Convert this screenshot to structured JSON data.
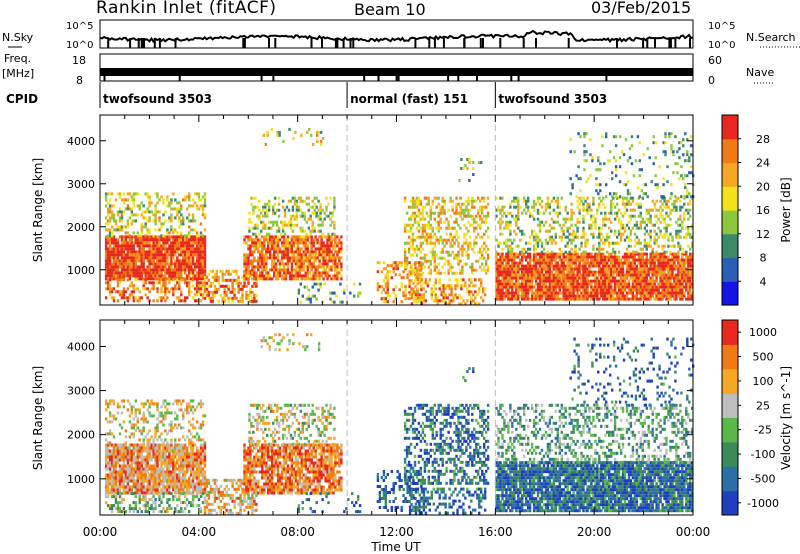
{
  "header": {
    "title": "Rankin Inlet (fitACF)",
    "beam": "Beam 10",
    "date": "03/Feb/2015"
  },
  "strips": {
    "noise_left": "N.Sky",
    "noise_right": "N.Search",
    "noise_ticks": [
      "10^5",
      "10^0"
    ],
    "freq_left_top": "Freq.",
    "freq_left_unit": "[MHz]",
    "freq_ticks": [
      "18",
      "8"
    ],
    "nave_ticks": [
      "60",
      "0"
    ],
    "nave_right": "Nave",
    "cpid_label": "CPID",
    "cpid_segments": [
      {
        "label": "twofsound 3503",
        "start_h": 0.0,
        "end_h": 10.0
      },
      {
        "label": "normal (fast) 151",
        "start_h": 10.0,
        "end_h": 16.0
      },
      {
        "label": "twofsound 3503",
        "start_h": 16.0,
        "end_h": 24.0
      }
    ]
  },
  "chart_data": [
    {
      "type": "heatmap",
      "title": "",
      "xlabel": "",
      "ylabel": "Slant Range [km]",
      "xlim": [
        0,
        24
      ],
      "ylim": [
        180,
        4600
      ],
      "yticks": [
        1000,
        2000,
        3000,
        4000
      ],
      "colorbar": {
        "label": "Power [dB]",
        "ticks": [
          "4",
          "8",
          "12",
          "16",
          "20",
          "24",
          "28"
        ],
        "colors": [
          "#1414e6",
          "#2a5fb5",
          "#3a8a6a",
          "#8dc63f",
          "#f2e21a",
          "#f5a623",
          "#f07a14",
          "#e8281e"
        ]
      },
      "scatter_regions": [
        {
          "t": [
            0.2,
            4.2
          ],
          "r": [
            800,
            1800
          ],
          "level": 0.93,
          "density": 0.92
        },
        {
          "t": [
            0.2,
            4.2
          ],
          "r": [
            1800,
            2800
          ],
          "level": 0.55,
          "density": 0.35
        },
        {
          "t": [
            0.2,
            4.2
          ],
          "r": [
            250,
            800
          ],
          "level": 0.78,
          "density": 0.45
        },
        {
          "t": [
            4.2,
            6.3
          ],
          "r": [
            250,
            1000
          ],
          "level": 0.75,
          "density": 0.55
        },
        {
          "t": [
            5.8,
            9.8
          ],
          "r": [
            800,
            1800
          ],
          "level": 0.82,
          "density": 0.8
        },
        {
          "t": [
            6.0,
            9.5
          ],
          "r": [
            1800,
            2700
          ],
          "level": 0.5,
          "density": 0.35
        },
        {
          "t": [
            6.5,
            9.0
          ],
          "r": [
            3900,
            4300
          ],
          "level": 0.55,
          "density": 0.2
        },
        {
          "t": [
            8.0,
            10.5
          ],
          "r": [
            250,
            700
          ],
          "level": 0.35,
          "density": 0.15
        },
        {
          "t": [
            11.2,
            13.0
          ],
          "r": [
            250,
            1200
          ],
          "level": 0.72,
          "density": 0.35
        },
        {
          "t": [
            12.3,
            15.7
          ],
          "r": [
            900,
            2700
          ],
          "level": 0.62,
          "density": 0.45
        },
        {
          "t": [
            12.5,
            15.6
          ],
          "r": [
            200,
            800
          ],
          "level": 0.72,
          "density": 0.4
        },
        {
          "t": [
            14.5,
            15.5
          ],
          "r": [
            3100,
            3600
          ],
          "level": 0.45,
          "density": 0.15
        },
        {
          "t": [
            16.0,
            24.0
          ],
          "r": [
            300,
            1400
          ],
          "level": 0.88,
          "density": 0.9
        },
        {
          "t": [
            16.0,
            24.0
          ],
          "r": [
            1400,
            2700
          ],
          "level": 0.5,
          "density": 0.35
        },
        {
          "t": [
            19.0,
            24.0
          ],
          "r": [
            2700,
            4200
          ],
          "level": 0.38,
          "density": 0.14
        }
      ]
    },
    {
      "type": "heatmap",
      "title": "",
      "xlabel": "Time UT",
      "ylabel": "Slant Range [km]",
      "xlim": [
        0,
        24
      ],
      "ylim": [
        180,
        4600
      ],
      "xticks": [
        "00:00",
        "04:00",
        "08:00",
        "12:00",
        "16:00",
        "20:00",
        "00:00"
      ],
      "yticks": [
        1000,
        2000,
        3000,
        4000
      ],
      "colorbar": {
        "label": "Velocity [m s^-1]",
        "ticks": [
          "1000",
          "500",
          "100",
          "25",
          "-25",
          "-100",
          "-500",
          "-1000"
        ],
        "colors": [
          "#1f3fbf",
          "#2a6fa8",
          "#3a8a5a",
          "#5ab84a",
          "#bdbdbd",
          "#f5a623",
          "#f07a14",
          "#e8281e"
        ]
      },
      "scatter_regions": [
        {
          "t": [
            0.2,
            4.2
          ],
          "r": [
            700,
            1800
          ],
          "level": 0.72,
          "density": 0.88
        },
        {
          "t": [
            0.2,
            4.2
          ],
          "r": [
            1800,
            2800
          ],
          "level": 0.6,
          "density": 0.35
        },
        {
          "t": [
            0.2,
            4.2
          ],
          "r": [
            250,
            700
          ],
          "level": 0.45,
          "density": 0.4
        },
        {
          "t": [
            4.2,
            6.3
          ],
          "r": [
            250,
            1000
          ],
          "level": 0.68,
          "density": 0.55
        },
        {
          "t": [
            5.8,
            9.8
          ],
          "r": [
            700,
            1800
          ],
          "level": 0.8,
          "density": 0.78
        },
        {
          "t": [
            6.0,
            9.5
          ],
          "r": [
            1800,
            2700
          ],
          "level": 0.55,
          "density": 0.35
        },
        {
          "t": [
            6.5,
            9.0
          ],
          "r": [
            3900,
            4300
          ],
          "level": 0.6,
          "density": 0.2
        },
        {
          "t": [
            8.0,
            10.5
          ],
          "r": [
            250,
            700
          ],
          "level": 0.2,
          "density": 0.15
        },
        {
          "t": [
            11.2,
            13.0
          ],
          "r": [
            250,
            1200
          ],
          "level": 0.15,
          "density": 0.35
        },
        {
          "t": [
            12.3,
            15.7
          ],
          "r": [
            900,
            2700
          ],
          "level": 0.2,
          "density": 0.45
        },
        {
          "t": [
            12.5,
            15.6
          ],
          "r": [
            200,
            800
          ],
          "level": 0.2,
          "density": 0.4
        },
        {
          "t": [
            14.5,
            15.5
          ],
          "r": [
            3100,
            3600
          ],
          "level": 0.2,
          "density": 0.15
        },
        {
          "t": [
            16.0,
            24.0
          ],
          "r": [
            300,
            1400
          ],
          "level": 0.2,
          "density": 0.9
        },
        {
          "t": [
            16.0,
            24.0
          ],
          "r": [
            1400,
            2700
          ],
          "level": 0.38,
          "density": 0.35
        },
        {
          "t": [
            19.0,
            24.0
          ],
          "r": [
            2700,
            4200
          ],
          "level": 0.18,
          "density": 0.14
        }
      ]
    }
  ]
}
